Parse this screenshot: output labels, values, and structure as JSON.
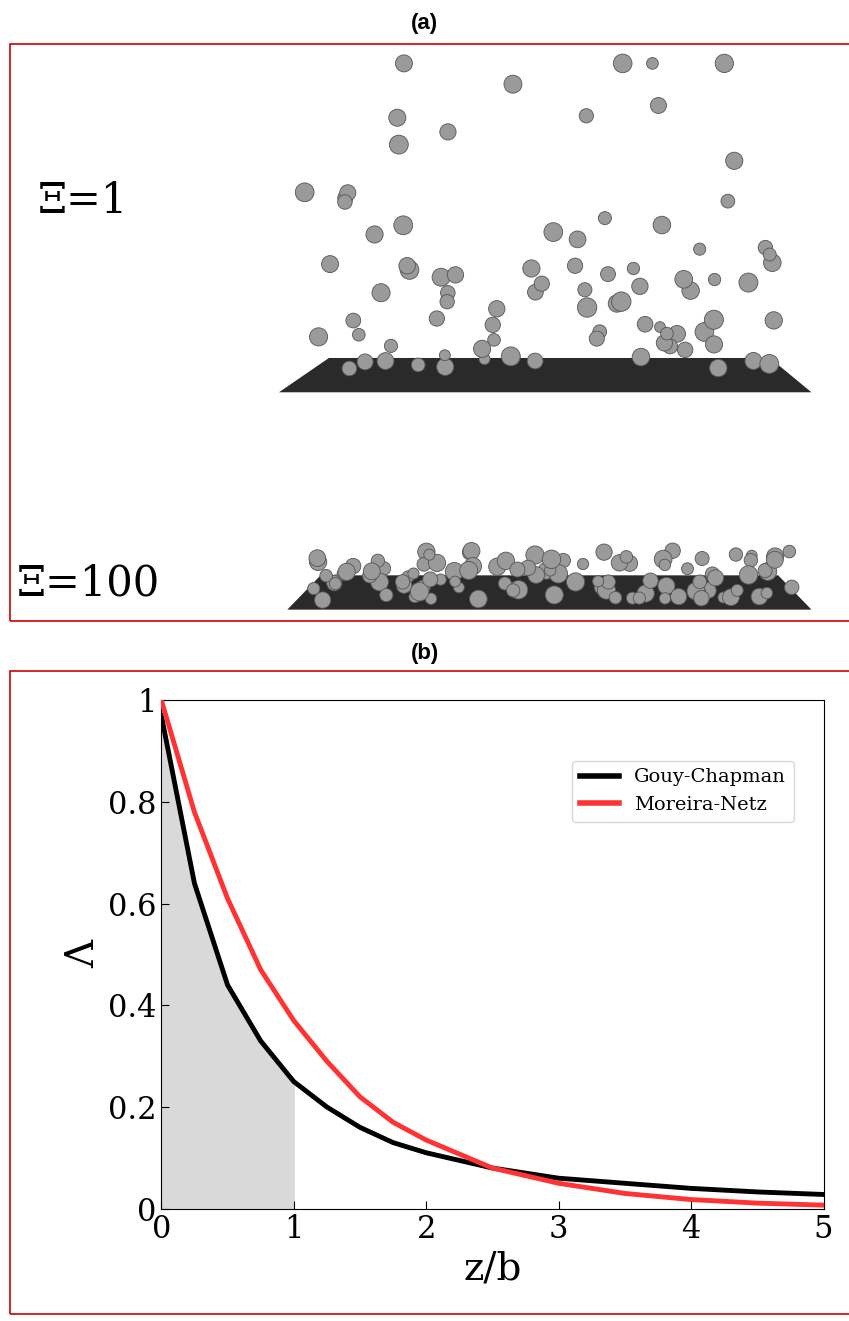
{
  "figure": {
    "panel_a": {
      "label": "(a)",
      "rows": [
        {
          "label": "Ξ=1"
        },
        {
          "label": "Ξ=100"
        }
      ]
    }
  },
  "chart_data": {
    "type": "line",
    "title": "(b)",
    "x_label": "z/b",
    "y_label": "Λ",
    "x": [
      0,
      0.25,
      0.5,
      0.75,
      1,
      1.25,
      1.5,
      1.75,
      2,
      2.5,
      3,
      3.5,
      4,
      4.5,
      5
    ],
    "series": [
      {
        "name": "Gouy-Chapman",
        "color": "#000000",
        "values": [
          0.97,
          0.64,
          0.44,
          0.33,
          0.25,
          0.2,
          0.16,
          0.13,
          0.11,
          0.08,
          0.06,
          0.05,
          0.04,
          0.033,
          0.028
        ]
      },
      {
        "name": "Moreira-Netz",
        "color": "#ff3333",
        "values": [
          1.0,
          0.78,
          0.61,
          0.47,
          0.37,
          0.29,
          0.22,
          0.17,
          0.135,
          0.08,
          0.05,
          0.03,
          0.018,
          0.011,
          0.007
        ]
      }
    ],
    "shaded_region": [
      0,
      1
    ],
    "xlim": [
      0,
      5
    ],
    "xticks": [
      0,
      1,
      2,
      3,
      4,
      5
    ],
    "ylim": [
      0,
      1
    ],
    "yticks": [
      0,
      0.2,
      0.4,
      0.6,
      0.8,
      1
    ],
    "legend": "upper right"
  }
}
